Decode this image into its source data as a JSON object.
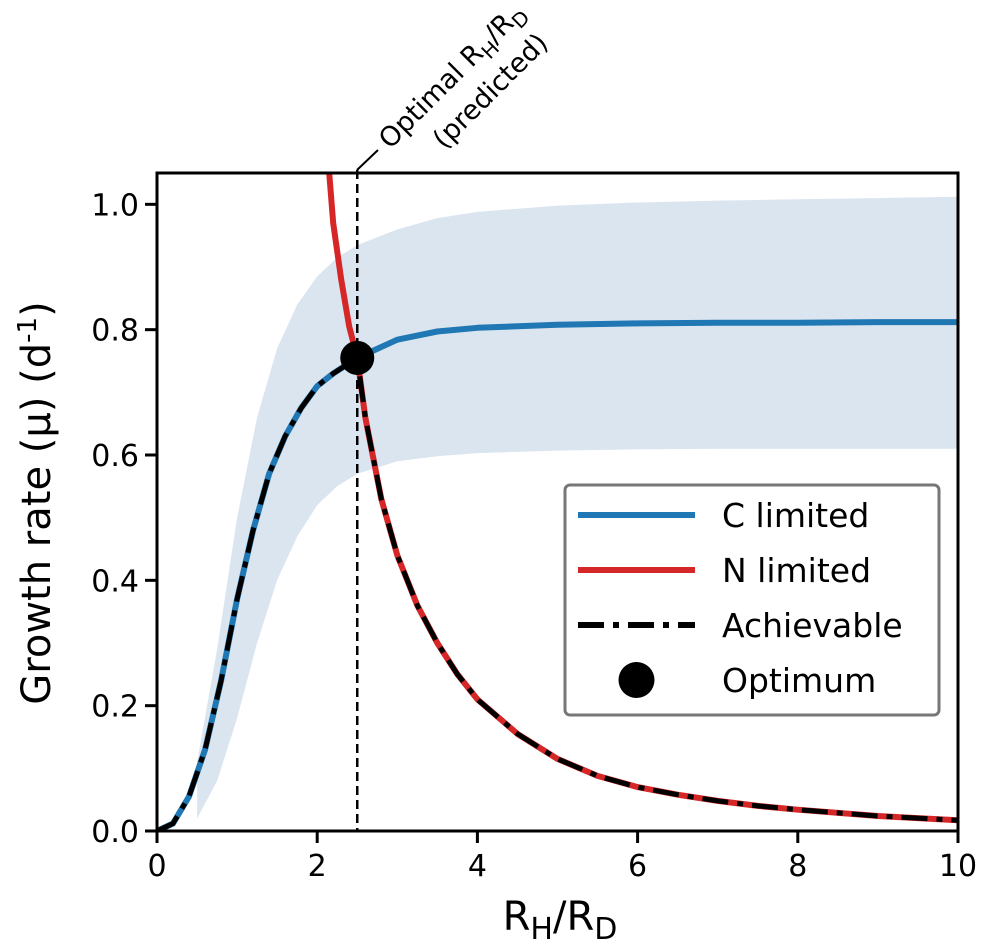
{
  "chart_data": {
    "type": "line",
    "xlabel": {
      "main": "R",
      "sub1": "H",
      "mid": "/R",
      "sub2": "D"
    },
    "ylabel": {
      "main": "Growth rate (μ) (d",
      "sup": "-1",
      "end": ")"
    },
    "xlim": [
      0,
      10
    ],
    "ylim": [
      0,
      1.05
    ],
    "x_ticks": [
      0,
      2,
      4,
      6,
      8,
      10
    ],
    "y_ticks": [
      0.0,
      0.2,
      0.4,
      0.6,
      0.8,
      1.0
    ],
    "x_tick_labels": [
      "0",
      "2",
      "4",
      "6",
      "8",
      "10"
    ],
    "y_tick_labels": [
      "0.0",
      "0.2",
      "0.4",
      "0.6",
      "0.8",
      "1.0"
    ],
    "grid": false,
    "legend_position": "center-right",
    "colors": {
      "c_limited": "#1f77b4",
      "n_limited": "#d62728",
      "achievable": "#000000",
      "band": "#dbe5ef"
    },
    "series": [
      {
        "name": "C limited",
        "style": "solid",
        "x": [
          0,
          0.2,
          0.4,
          0.6,
          0.8,
          1.0,
          1.2,
          1.4,
          1.6,
          1.8,
          2.0,
          2.2,
          2.5,
          3.0,
          3.5,
          4.0,
          5.0,
          6.0,
          7.0,
          8.0,
          9.0,
          10.0
        ],
        "y": [
          0,
          0.012,
          0.055,
          0.13,
          0.24,
          0.37,
          0.48,
          0.57,
          0.63,
          0.675,
          0.71,
          0.73,
          0.755,
          0.784,
          0.797,
          0.803,
          0.808,
          0.81,
          0.811,
          0.811,
          0.812,
          0.812
        ]
      },
      {
        "name": "N limited",
        "style": "solid",
        "x": [
          2.15,
          2.2,
          2.3,
          2.4,
          2.5,
          2.6,
          2.8,
          3.0,
          3.25,
          3.5,
          3.75,
          4.0,
          4.5,
          5.0,
          5.5,
          6.0,
          6.5,
          7.0,
          7.5,
          8.0,
          9.0,
          10.0
        ],
        "y": [
          1.05,
          0.97,
          0.88,
          0.805,
          0.755,
          0.66,
          0.53,
          0.44,
          0.36,
          0.3,
          0.25,
          0.21,
          0.155,
          0.115,
          0.088,
          0.07,
          0.058,
          0.048,
          0.04,
          0.034,
          0.024,
          0.017
        ]
      },
      {
        "name": "Achievable",
        "style": "dashdot",
        "x": [
          0,
          0.2,
          0.4,
          0.6,
          0.8,
          1.0,
          1.2,
          1.4,
          1.6,
          1.8,
          2.0,
          2.2,
          2.5,
          2.6,
          2.8,
          3.0,
          3.25,
          3.5,
          3.75,
          4.0,
          4.5,
          5.0,
          5.5,
          6.0,
          6.5,
          7.0,
          7.5,
          8.0,
          9.0,
          10.0
        ],
        "y": [
          0,
          0.012,
          0.055,
          0.13,
          0.24,
          0.37,
          0.48,
          0.57,
          0.63,
          0.675,
          0.71,
          0.73,
          0.755,
          0.66,
          0.53,
          0.44,
          0.36,
          0.3,
          0.25,
          0.21,
          0.155,
          0.115,
          0.088,
          0.07,
          0.058,
          0.048,
          0.04,
          0.034,
          0.024,
          0.017
        ]
      }
    ],
    "band": {
      "x": [
        0.5,
        0.75,
        1.0,
        1.25,
        1.5,
        1.75,
        2.0,
        2.25,
        2.5,
        3.0,
        3.5,
        4.0,
        5.0,
        6.0,
        7.0,
        8.0,
        9.0,
        10.0
      ],
      "upper": [
        0.11,
        0.29,
        0.5,
        0.66,
        0.77,
        0.84,
        0.885,
        0.915,
        0.935,
        0.96,
        0.978,
        0.988,
        0.998,
        1.003,
        1.006,
        1.008,
        1.01,
        1.012
      ],
      "lower": [
        0.02,
        0.08,
        0.18,
        0.3,
        0.4,
        0.47,
        0.52,
        0.55,
        0.57,
        0.59,
        0.598,
        0.603,
        0.607,
        0.609,
        0.61,
        0.61,
        0.61,
        0.61
      ]
    },
    "optimum": {
      "x": 2.5,
      "y": 0.755
    },
    "vline_x": 2.5,
    "legend": [
      {
        "label": "C limited",
        "kind": "line",
        "color": "#1f77b4"
      },
      {
        "label": "N limited",
        "kind": "line",
        "color": "#d62728"
      },
      {
        "label": "Achievable",
        "kind": "dashdot",
        "color": "#000000"
      },
      {
        "label": "Optimum",
        "kind": "marker",
        "color": "#000000"
      }
    ],
    "annotation": {
      "line1_main": "Optimal R",
      "line1_sub1": "H",
      "line1_mid": "/R",
      "line1_sub2": "D",
      "line2": "(predicted)"
    }
  }
}
